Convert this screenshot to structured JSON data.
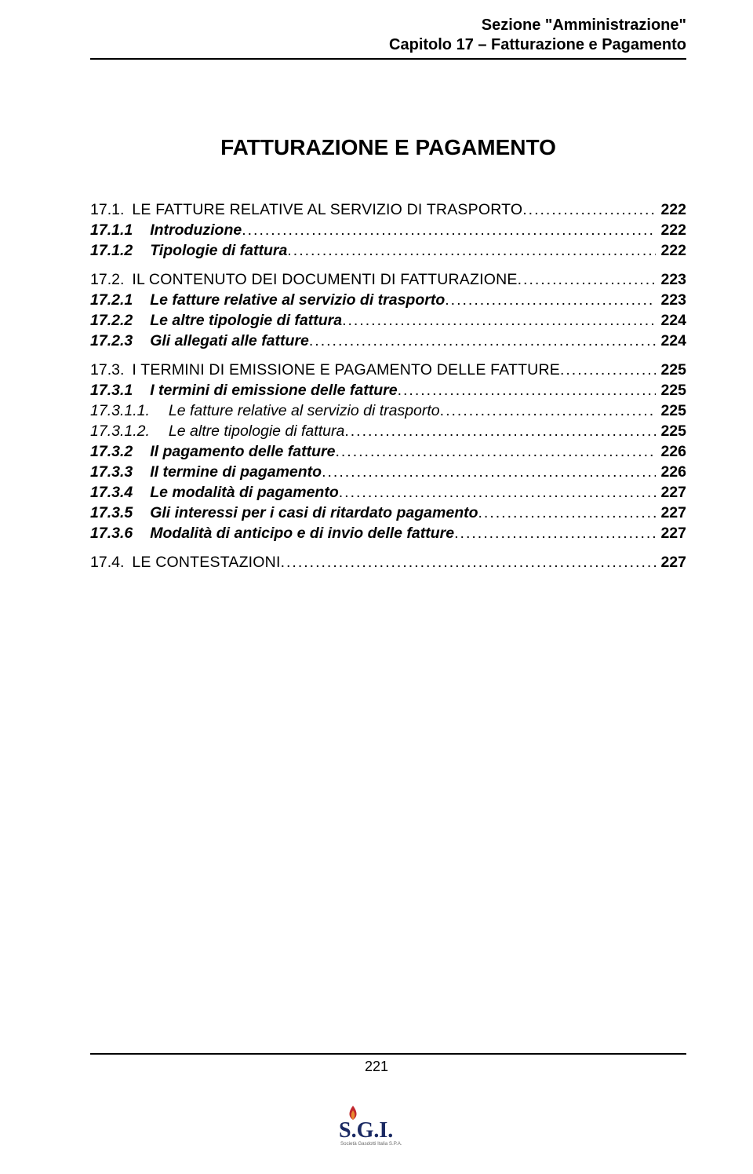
{
  "colors": {
    "text": "#000000",
    "background": "#ffffff",
    "rule": "#000000",
    "logo_navy": "#1b2a63",
    "logo_red": "#c1272d",
    "logo_orange": "#e88b2f",
    "logo_gray": "#6b6b6b"
  },
  "header": {
    "line1": "Sezione \"Amministrazione\"",
    "line2": "Capitolo 17 – Fatturazione e Pagamento"
  },
  "title": "FATTURAZIONE E PAGAMENTO",
  "page_number": "221",
  "logo": {
    "text_main": "S.G.I.",
    "text_sub": "Società Gasdotti Italia  S.P.A."
  },
  "toc": [
    {
      "num": "17.1.",
      "text": "LE FATTURE RELATIVE AL SERVIZIO DI TRASPORTO",
      "page": "222",
      "style": "smcaps",
      "num_style": "plain",
      "gap_before": false,
      "indent_after_num": 0
    },
    {
      "num": "17.1.1",
      "text": "Introduzione",
      "page": "222",
      "style": "bolditalic",
      "num_style": "bolditalic",
      "gap_before": false,
      "indent_after_num": 16
    },
    {
      "num": "17.1.2",
      "text": "Tipologie di fattura",
      "page": "222",
      "style": "bolditalic",
      "num_style": "bolditalic",
      "gap_before": false,
      "indent_after_num": 16
    },
    {
      "num": "17.2.",
      "text": "IL CONTENUTO DEI DOCUMENTI DI FATTURAZIONE",
      "page": "223",
      "style": "smcaps",
      "num_style": "plain",
      "gap_before": true,
      "indent_after_num": 0
    },
    {
      "num": "17.2.1",
      "text": "Le fatture relative al servizio di trasporto",
      "page": "223",
      "style": "bolditalic",
      "num_style": "bolditalic",
      "gap_before": false,
      "indent_after_num": 16
    },
    {
      "num": "17.2.2",
      "text": "Le altre tipologie di fattura",
      "page": "224",
      "style": "bolditalic",
      "num_style": "bolditalic",
      "gap_before": false,
      "indent_after_num": 16
    },
    {
      "num": "17.2.3",
      "text": "Gli allegati alle fatture",
      "page": "224",
      "style": "bolditalic",
      "num_style": "bolditalic",
      "gap_before": false,
      "indent_after_num": 16
    },
    {
      "num": "17.3.",
      "text": "I TERMINI DI EMISSIONE E PAGAMENTO DELLE FATTURE",
      "page": "225",
      "style": "smcaps",
      "num_style": "plain",
      "gap_before": true,
      "indent_after_num": 0
    },
    {
      "num": "17.3.1",
      "text": "I termini di emissione delle fatture",
      "page": "225",
      "style": "bolditalic",
      "num_style": "bolditalic",
      "gap_before": false,
      "indent_after_num": 16
    },
    {
      "num": "17.3.1.1.",
      "text": "Le fatture relative al servizio di trasporto",
      "page": "225",
      "style": "italic",
      "num_style": "italic",
      "gap_before": false,
      "indent_after_num": 18
    },
    {
      "num": "17.3.1.2.",
      "text": "Le altre tipologie di fattura",
      "page": "225",
      "style": "italic",
      "num_style": "italic",
      "gap_before": false,
      "indent_after_num": 18
    },
    {
      "num": "17.3.2",
      "text": "Il pagamento delle fatture",
      "page": "226",
      "style": "bolditalic",
      "num_style": "bolditalic",
      "gap_before": false,
      "indent_after_num": 16
    },
    {
      "num": "17.3.3",
      "text": "Il termine di pagamento",
      "page": "226",
      "style": "bolditalic",
      "num_style": "bolditalic",
      "gap_before": false,
      "indent_after_num": 16
    },
    {
      "num": "17.3.4",
      "text": "Le modalità di pagamento",
      "page": "227",
      "style": "bolditalic",
      "num_style": "bolditalic",
      "gap_before": false,
      "indent_after_num": 16
    },
    {
      "num": "17.3.5",
      "text": "Gli interessi per i casi di ritardato pagamento",
      "page": "227",
      "style": "bolditalic",
      "num_style": "bolditalic",
      "gap_before": false,
      "indent_after_num": 16
    },
    {
      "num": "17.3.6",
      "text": "Modalità di anticipo e di invio delle fatture",
      "page": "227",
      "style": "bolditalic",
      "num_style": "bolditalic",
      "gap_before": false,
      "indent_after_num": 16
    },
    {
      "num": "17.4.",
      "text": "LE CONTESTAZIONI",
      "page": "227",
      "style": "smcaps",
      "num_style": "plain",
      "gap_before": true,
      "indent_after_num": 0
    }
  ]
}
